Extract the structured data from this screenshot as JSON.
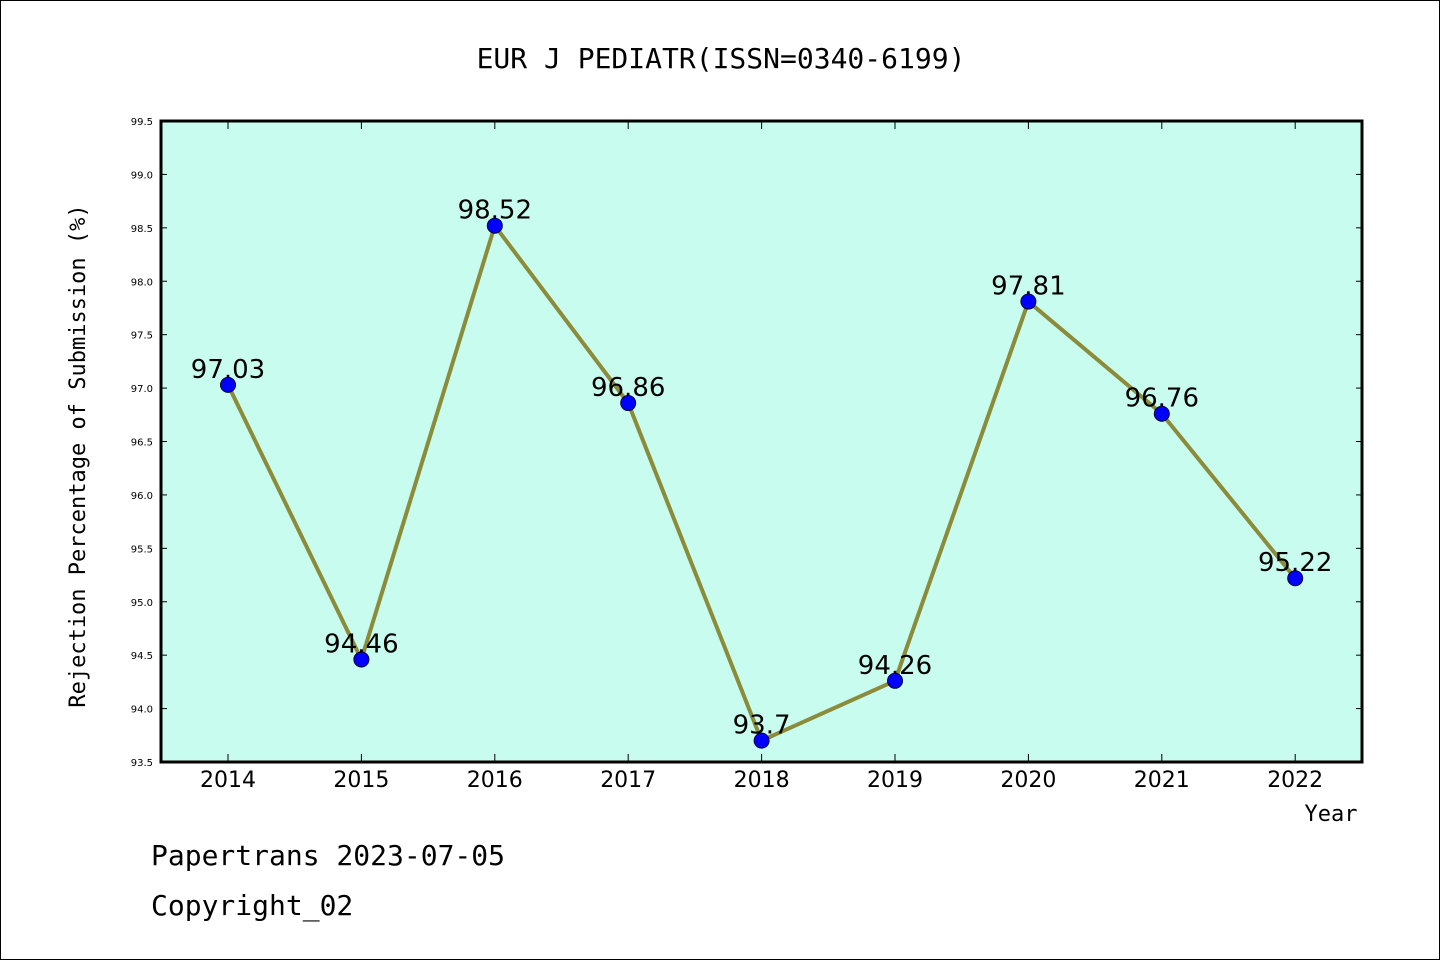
{
  "chart_data": {
    "type": "line",
    "title": "EUR J PEDIATR(ISSN=0340-6199)",
    "xlabel": "Year",
    "ylabel": "Rejection Percentage of Submission (%)",
    "categories": [
      "2014",
      "2015",
      "2016",
      "2017",
      "2018",
      "2019",
      "2020",
      "2021",
      "2022"
    ],
    "series": [
      {
        "values": [
          97.03,
          94.46,
          98.52,
          96.86,
          93.7,
          94.26,
          97.81,
          96.76,
          95.22
        ],
        "labels": [
          "97.03",
          "94.46",
          "98.52",
          "96.86",
          "93.7",
          "94.26",
          "97.81",
          "96.76",
          "95.22"
        ]
      }
    ],
    "ylim": [
      93.5,
      99.5
    ],
    "yticks": [
      "93.5",
      "94.0",
      "94.5",
      "95.0",
      "95.5",
      "96.0",
      "96.5",
      "97.0",
      "97.5",
      "98.0",
      "98.5",
      "99.0",
      "99.5"
    ],
    "grid": false,
    "colors": {
      "plot_background": "#c8fcee",
      "line": "#8b8b3a",
      "marker": "#0000ff"
    }
  },
  "footer": {
    "line1": "Papertrans 2023-07-05",
    "line2": "Copyright_02"
  }
}
